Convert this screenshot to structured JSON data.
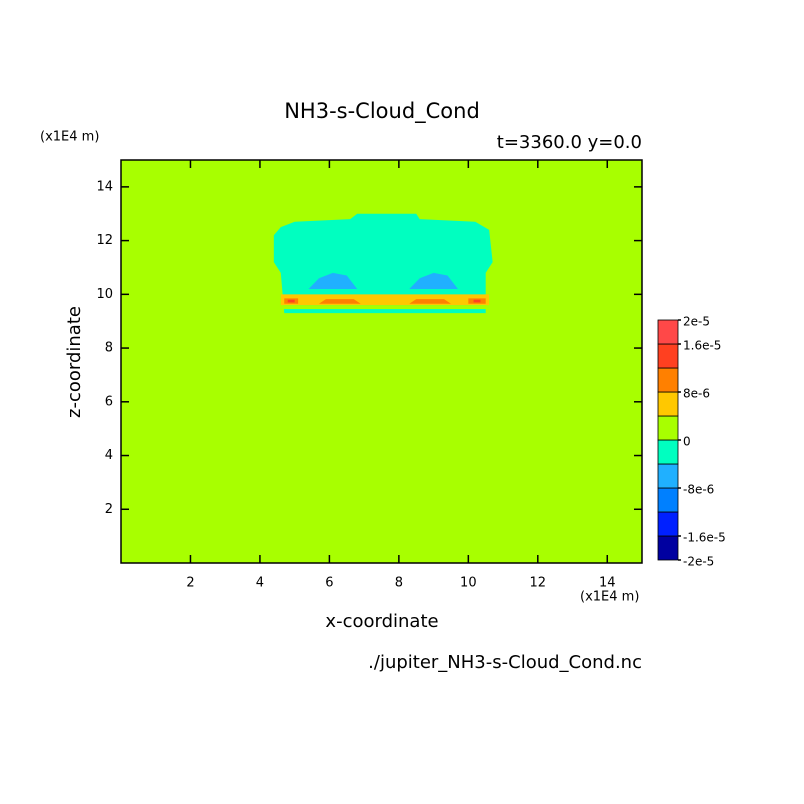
{
  "chart_data": {
    "type": "contour",
    "title": "NH3-s-Cloud_Cond",
    "subtitle": "t=3360.0 y=0.0",
    "x_label": "x-coordinate",
    "y_label": "z-coordinate",
    "x_unit": "(x1E4 m)",
    "y_unit": "(x1E4 m)",
    "file": "./jupiter_NH3-s-Cloud_Cond.nc",
    "xlim": [
      0,
      15
    ],
    "ylim": [
      0,
      15
    ],
    "xticks": [
      2,
      4,
      6,
      8,
      10,
      12,
      14
    ],
    "yticks": [
      2,
      4,
      6,
      8,
      10,
      12,
      14
    ],
    "colorbar": {
      "lim": [
        -2e-05,
        2e-05
      ],
      "colors": [
        "#0000a0",
        "#0020ff",
        "#0080ff",
        "#20b0ff",
        "#00ffc0",
        "#a8ff00",
        "#ffc800",
        "#ff8000",
        "#ff4020",
        "#ff4848"
      ],
      "ticks": [
        {
          "value": 2e-05,
          "label": "2e-5"
        },
        {
          "value": 1.6e-05,
          "label": "1.6e-5"
        },
        {
          "value": 8e-06,
          "label": "8e-6"
        },
        {
          "value": 0,
          "label": "0"
        },
        {
          "value": -8e-06,
          "label": "-8e-6"
        },
        {
          "value": -1.6e-05,
          "label": "-1.6e-5"
        },
        {
          "value": -2e-05,
          "label": "-2e-5"
        }
      ]
    },
    "regions": [
      {
        "value": 2e-06,
        "x": [
          0,
          15,
          15,
          0
        ],
        "z": [
          0,
          0,
          15,
          15
        ]
      },
      {
        "value": -2e-06,
        "x": [
          4.6,
          5.0,
          6.6,
          6.8,
          8.5,
          8.6,
          10.2,
          10.6,
          10.7,
          10.5,
          10.5,
          4.7,
          4.6,
          4.4,
          4.4
        ],
        "z": [
          12.5,
          12.7,
          12.8,
          13.0,
          13.0,
          12.8,
          12.7,
          12.4,
          11.2,
          10.8,
          9.3,
          9.3,
          10.8,
          11.2,
          12.2
        ]
      },
      {
        "value": -6e-06,
        "x": [
          5.4,
          5.7,
          6.1,
          6.5,
          6.8
        ],
        "z": [
          10.2,
          10.6,
          10.8,
          10.7,
          10.2
        ]
      },
      {
        "value": -6e-06,
        "x": [
          8.3,
          8.6,
          9.0,
          9.4,
          9.7
        ],
        "z": [
          10.2,
          10.6,
          10.8,
          10.7,
          10.2
        ]
      },
      {
        "value": 2e-06,
        "x": [
          4.6,
          10.6,
          10.6,
          4.6
        ],
        "z": [
          9.45,
          9.45,
          9.6,
          9.6
        ]
      },
      {
        "value": 6e-06,
        "x": [
          4.6,
          10.6,
          10.6,
          4.6
        ],
        "z": [
          9.6,
          9.6,
          10.0,
          10.0
        ]
      },
      {
        "value": 1e-05,
        "x": [
          4.7,
          5.1,
          5.1,
          4.7
        ],
        "z": [
          9.65,
          9.65,
          9.85,
          9.85
        ]
      },
      {
        "value": 1e-05,
        "x": [
          5.7,
          6.9,
          6.7,
          5.9
        ],
        "z": [
          9.65,
          9.65,
          9.82,
          9.82
        ]
      },
      {
        "value": 1e-05,
        "x": [
          8.3,
          9.5,
          9.3,
          8.5
        ],
        "z": [
          9.65,
          9.65,
          9.82,
          9.82
        ]
      },
      {
        "value": 1e-05,
        "x": [
          10.0,
          10.5,
          10.5,
          10.0
        ],
        "z": [
          9.65,
          9.65,
          9.85,
          9.85
        ]
      },
      {
        "value": 1.4e-05,
        "x": [
          4.8,
          5.0,
          5.0,
          4.8
        ],
        "z": [
          9.7,
          9.7,
          9.8,
          9.8
        ]
      },
      {
        "value": 1.4e-05,
        "x": [
          10.15,
          10.35,
          10.35,
          10.15
        ],
        "z": [
          9.7,
          9.7,
          9.8,
          9.8
        ]
      }
    ]
  }
}
